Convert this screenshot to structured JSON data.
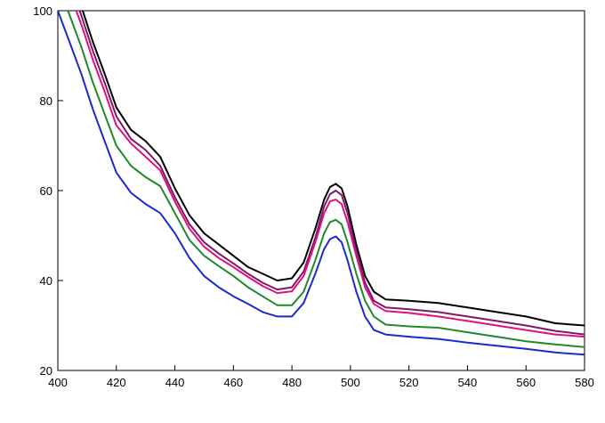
{
  "chart_data": {
    "type": "line",
    "title": "",
    "xlabel": "",
    "ylabel": "",
    "xlim": [
      400,
      580
    ],
    "ylim": [
      20,
      100
    ],
    "x_ticks": [
      400,
      420,
      440,
      460,
      480,
      500,
      520,
      540,
      560,
      580
    ],
    "y_ticks": [
      20,
      40,
      60,
      80,
      100
    ],
    "grid": false,
    "legend": "none",
    "x": [
      400,
      404,
      408,
      412,
      416,
      420,
      425,
      430,
      435,
      440,
      445,
      450,
      455,
      460,
      465,
      470,
      475,
      480,
      484,
      488,
      491,
      493,
      495,
      497,
      499,
      502,
      505,
      508,
      512,
      520,
      530,
      540,
      550,
      560,
      570,
      580
    ],
    "series": [
      {
        "color": "#000000",
        "values": [
          114,
          108,
          101,
          93,
          86,
          78.5,
          73.5,
          71,
          67.5,
          60.5,
          54.5,
          50.5,
          48,
          45.5,
          43,
          41.5,
          40,
          40.5,
          44,
          51.5,
          58,
          60.8,
          61.5,
          60.5,
          56.5,
          48,
          41,
          37.5,
          35.8,
          35.5,
          35,
          34,
          33,
          32,
          30.5,
          30
        ]
      },
      {
        "color": "#7a1a6a",
        "values": [
          112,
          106,
          99,
          91,
          84,
          76.5,
          71.5,
          69,
          65.5,
          58.5,
          52.5,
          48.5,
          46,
          43.8,
          41.5,
          39.5,
          38,
          38.5,
          42,
          49.5,
          56.5,
          59.2,
          60,
          59,
          55,
          46.5,
          39.5,
          35.5,
          34,
          33.6,
          33,
          32,
          31,
          30,
          28.8,
          28
        ]
      },
      {
        "color": "#e0107a",
        "values": [
          111,
          104,
          97,
          89,
          82,
          74.5,
          70.5,
          67.5,
          64.5,
          57.5,
          51.5,
          47.5,
          45,
          43,
          40.8,
          38.8,
          37.2,
          37.6,
          41,
          48.5,
          55,
          57.6,
          58,
          57,
          53,
          45.5,
          38.5,
          34.8,
          33.2,
          32.8,
          32,
          31,
          30,
          29,
          28,
          27.5
        ]
      },
      {
        "color": "#1e8a2a",
        "values": [
          106,
          99,
          92,
          84,
          77,
          70,
          65.5,
          63,
          61,
          55,
          49,
          45.5,
          43.2,
          41,
          38.5,
          36.5,
          34.5,
          34.5,
          37.5,
          44.5,
          50.5,
          53,
          53.5,
          52.5,
          48.5,
          41.5,
          35.5,
          32,
          30.2,
          29.8,
          29.5,
          28.5,
          27.5,
          26.5,
          25.8,
          25.2
        ]
      },
      {
        "color": "#1a2ad0",
        "values": [
          100,
          93,
          86,
          78,
          71,
          64,
          59.5,
          57,
          55,
          50.5,
          45,
          41,
          38.5,
          36.5,
          34.8,
          33,
          32,
          32,
          35,
          41.5,
          47,
          49.2,
          49.8,
          48.5,
          44.5,
          37.5,
          32,
          29,
          28,
          27.5,
          27,
          26.2,
          25.5,
          24.8,
          24,
          23.5
        ]
      }
    ]
  }
}
